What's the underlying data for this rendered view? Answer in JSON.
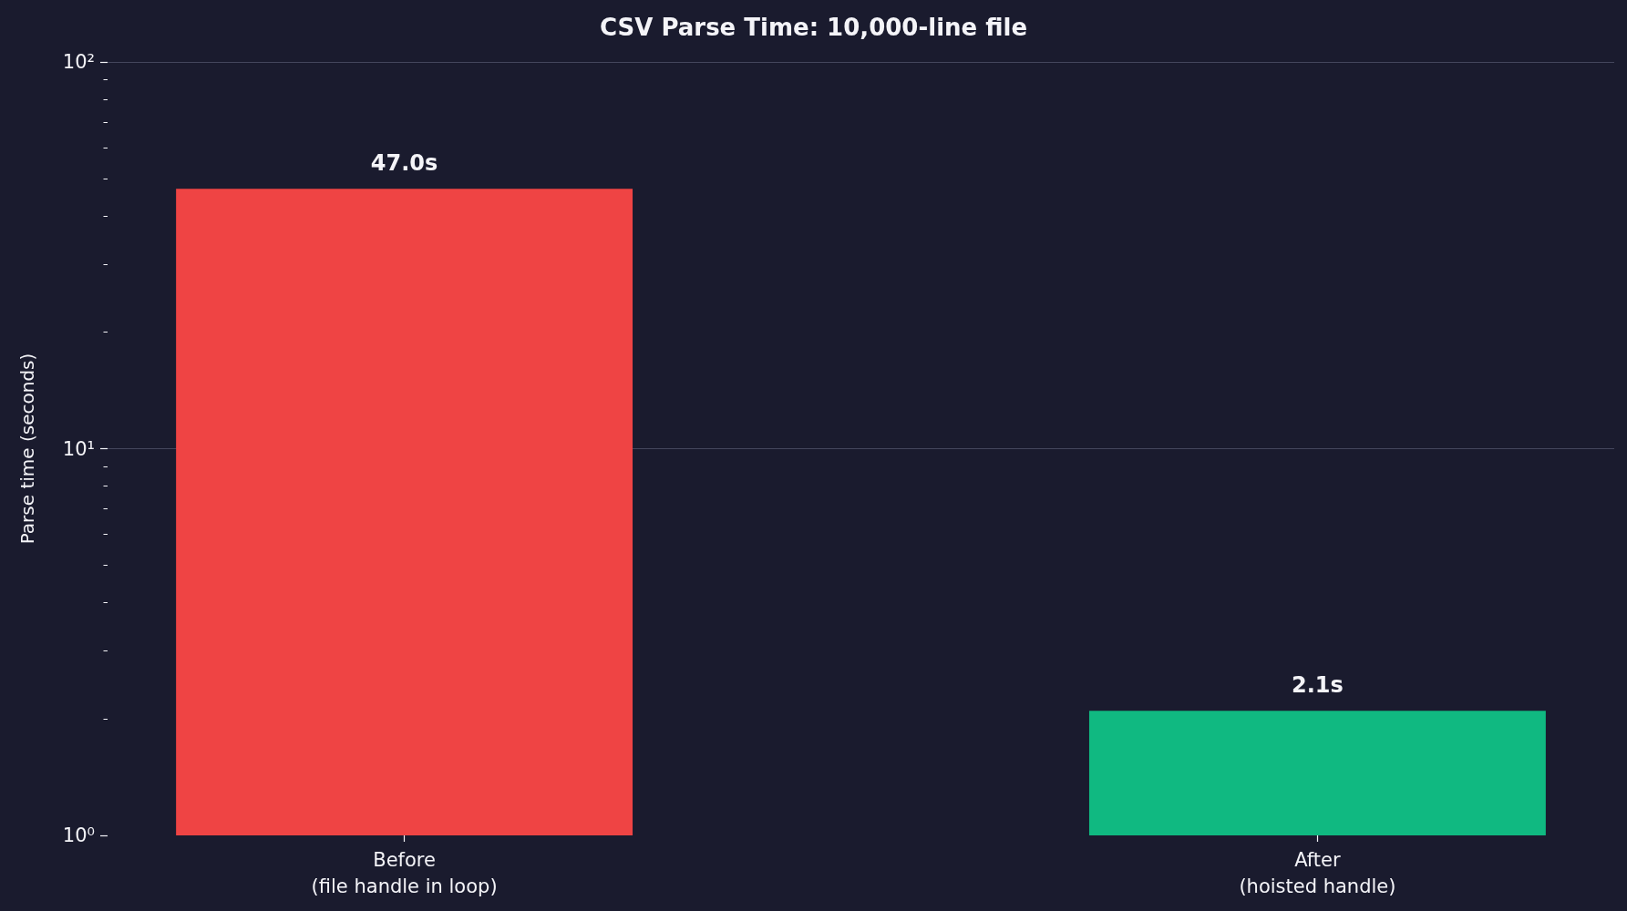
{
  "chart_data": {
    "type": "bar",
    "title": "CSV Parse Time: 10,000-line file",
    "ylabel": "Parse time (seconds)",
    "categories": [
      "Before\n(file handle in loop)",
      "After\n(hoisted handle)"
    ],
    "values": [
      47.0,
      2.1
    ],
    "colors": [
      "#ef4444",
      "#10b981"
    ],
    "value_labels": [
      "47.0s",
      "2.1s"
    ],
    "log": true,
    "ylim": [
      1,
      100
    ],
    "yticks": [
      {
        "value": 1,
        "label": "10⁰"
      },
      {
        "value": 2,
        "label": null
      },
      {
        "value": 3,
        "label": null
      },
      {
        "value": 4,
        "label": null
      },
      {
        "value": 5,
        "label": null
      },
      {
        "value": 6,
        "label": null
      },
      {
        "value": 7,
        "label": null
      },
      {
        "value": 8,
        "label": null
      },
      {
        "value": 9,
        "label": null
      },
      {
        "value": 10,
        "label": "10¹"
      },
      {
        "value": 20,
        "label": null
      },
      {
        "value": 30,
        "label": null
      },
      {
        "value": 40,
        "label": null
      },
      {
        "value": 50,
        "label": null
      },
      {
        "value": 60,
        "label": null
      },
      {
        "value": 70,
        "label": null
      },
      {
        "value": 80,
        "label": null
      },
      {
        "value": 90,
        "label": null
      },
      {
        "value": 100,
        "label": "10²"
      }
    ],
    "grid": "y"
  }
}
